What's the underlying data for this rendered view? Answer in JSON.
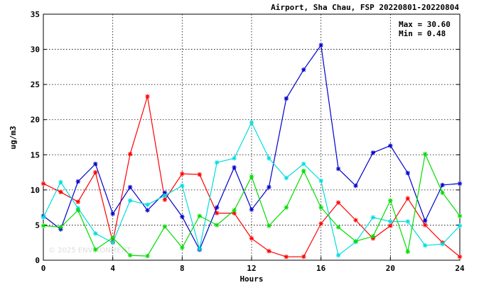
{
  "chart_data": {
    "type": "line",
    "title": "Airport, Sha Chau, FSP 20220801-20220804",
    "xlabel": "Hours",
    "ylabel": "ug/m3",
    "xlim": [
      0,
      24
    ],
    "ylim": [
      0,
      35
    ],
    "xticks": [
      0,
      4,
      8,
      12,
      16,
      20,
      24
    ],
    "yticks": [
      0,
      5,
      10,
      15,
      20,
      25,
      30,
      35
    ],
    "grid": true,
    "stats": {
      "max_label": "Max = 30.60",
      "min_label": "Min =  0.48"
    },
    "watermark": "© 2025 ENVIRONMENT",
    "x": [
      0,
      1,
      2,
      3,
      4,
      5,
      6,
      7,
      8,
      9,
      10,
      11,
      12,
      13,
      14,
      15,
      16,
      17,
      18,
      19,
      20,
      21,
      22,
      23,
      24
    ],
    "series": [
      {
        "color": "#ff0000",
        "values": [
          10.9,
          9.7,
          8.3,
          12.5,
          2.6,
          15.1,
          23.3,
          8.6,
          12.3,
          12.2,
          6.7,
          6.7,
          3.1,
          1.3,
          0.48,
          0.5,
          5.2,
          8.2,
          5.7,
          3.1,
          4.9,
          8.8,
          5.0,
          2.5,
          0.5
        ]
      },
      {
        "color": "#0000cc",
        "values": [
          6.3,
          4.4,
          11.2,
          13.7,
          6.6,
          10.4,
          7.1,
          9.6,
          6.2,
          1.5,
          7.5,
          13.2,
          7.2,
          10.4,
          23.0,
          27.1,
          30.6,
          13.0,
          10.6,
          15.3,
          16.3,
          12.4,
          5.6,
          10.7,
          10.9
        ]
      },
      {
        "color": "#00dddd",
        "values": [
          6.1,
          11.1,
          7.4,
          3.8,
          2.5,
          8.5,
          7.9,
          9.2,
          10.6,
          1.6,
          13.9,
          14.5,
          19.6,
          14.5,
          11.7,
          13.7,
          11.3,
          0.7,
          2.6,
          6.1,
          5.5,
          5.5,
          2.1,
          2.3,
          4.9
        ]
      },
      {
        "color": "#00dd00",
        "values": [
          4.9,
          4.7,
          7.1,
          1.5,
          3.2,
          0.7,
          0.6,
          4.8,
          1.8,
          6.3,
          5.0,
          7.1,
          11.9,
          4.9,
          7.5,
          12.7,
          7.5,
          4.7,
          2.7,
          3.4,
          8.5,
          1.2,
          15.1,
          9.6,
          6.3
        ]
      }
    ]
  }
}
